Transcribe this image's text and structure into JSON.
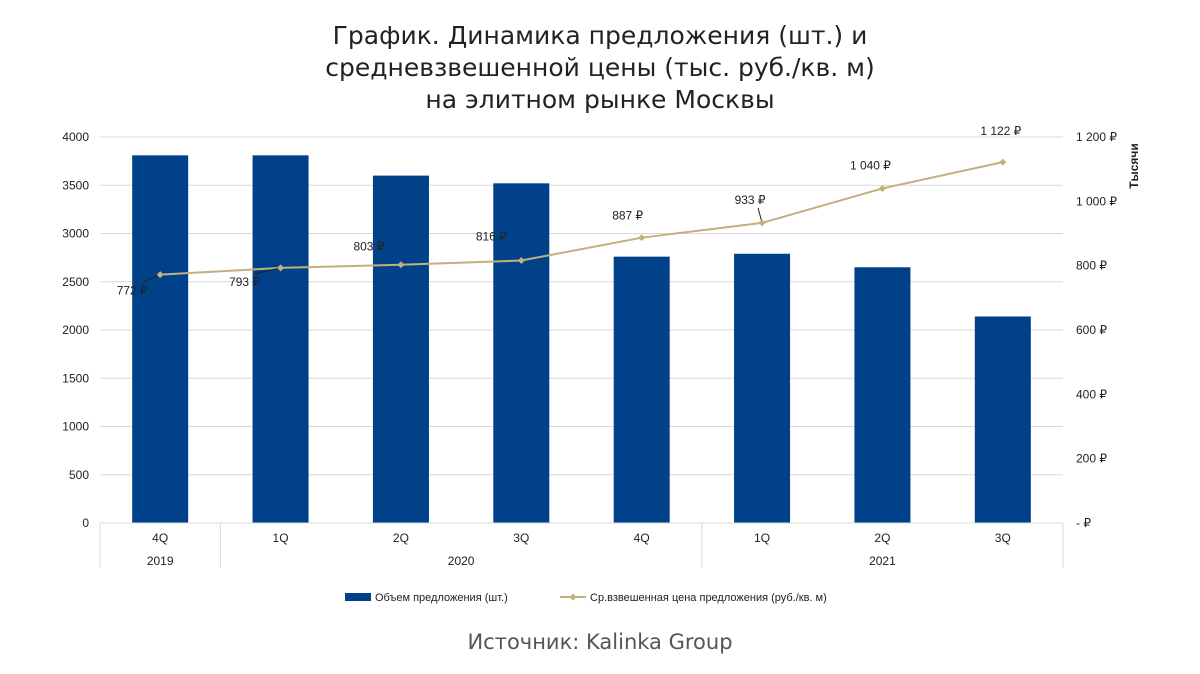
{
  "title_lines": [
    "График. Динамика предложения (шт.) и",
    "средневзвешенной цены (тыс. руб./кв. м)",
    "на элитном рынке Москвы"
  ],
  "source": "Источник: Kalinka Group",
  "colors": {
    "bar": "#004189",
    "line": "#c2b07d",
    "marker": "#c2b07d",
    "grid": "#d9d9d9",
    "axis_text": "#222222"
  },
  "chart_data": {
    "type": "bar",
    "categories": [
      "4Q",
      "1Q",
      "2Q",
      "3Q",
      "4Q",
      "1Q",
      "2Q",
      "3Q"
    ],
    "year_groups": [
      {
        "label": "2019",
        "span": 1
      },
      {
        "label": "2020",
        "span": 4
      },
      {
        "label": "2021",
        "span": 3
      }
    ],
    "series": [
      {
        "name": "Объем предложения (шт.)",
        "kind": "bar",
        "axis": "left",
        "values": [
          3810,
          3810,
          3600,
          3520,
          2760,
          2790,
          2650,
          2140
        ]
      },
      {
        "name": "Ср.взвешенная цена предложения (руб./кв. м)",
        "kind": "line",
        "axis": "right",
        "values": [
          772,
          793,
          803,
          816,
          887,
          933,
          1040,
          1122
        ],
        "data_labels": [
          "772 ₽",
          "793 ₽",
          "803 ₽",
          "816 ₽",
          "887 ₽",
          "933 ₽",
          "1 040 ₽",
          "1 122 ₽"
        ]
      }
    ],
    "y_left": {
      "ylim": [
        0,
        4000
      ],
      "ticks": [
        0,
        500,
        1000,
        1500,
        2000,
        2500,
        3000,
        3500,
        4000
      ],
      "tick_labels": [
        "0",
        "500",
        "1000",
        "1500",
        "2000",
        "2500",
        "3000",
        "3500",
        "4000"
      ]
    },
    "y_right": {
      "ylim": [
        0,
        1200
      ],
      "ticks": [
        0,
        200,
        400,
        600,
        800,
        1000,
        1200
      ],
      "tick_labels": [
        "-   ₽",
        "200 ₽",
        "400 ₽",
        "600 ₽",
        "800 ₽",
        "1 000 ₽",
        "1 200 ₽"
      ],
      "unit_label": "Тысячи"
    },
    "grid": true,
    "legend_position": "bottom"
  }
}
